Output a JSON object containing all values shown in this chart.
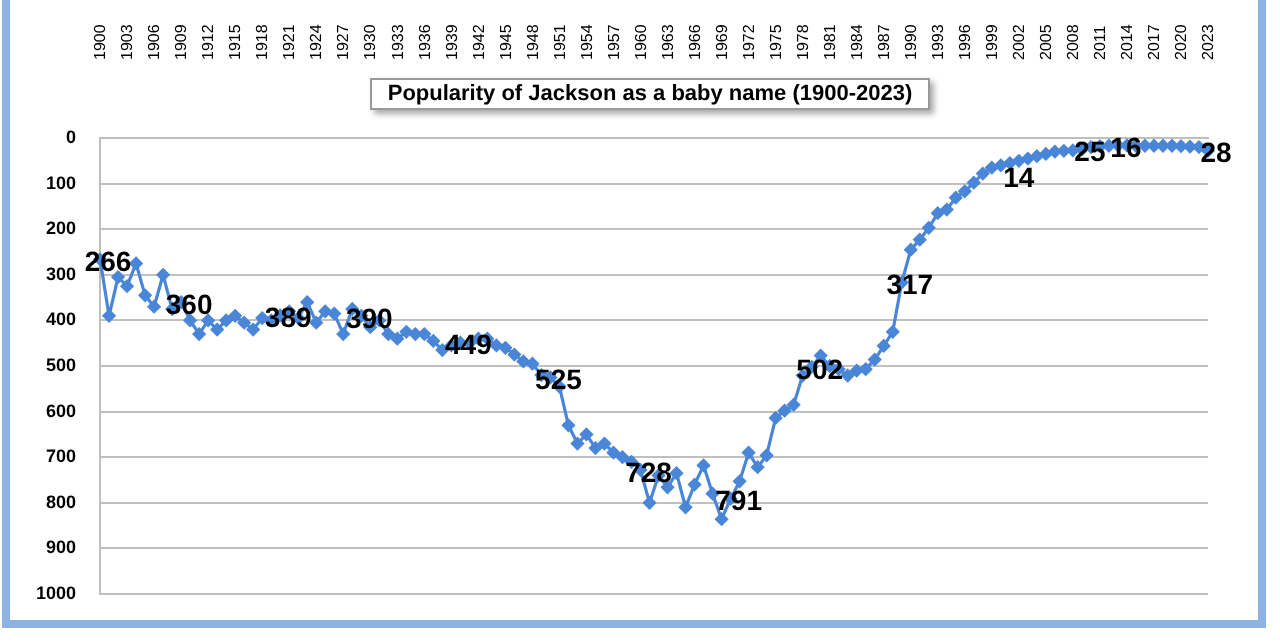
{
  "chart_data": {
    "type": "line",
    "title": "Popularity of Jackson as a baby name (1900-2023)",
    "categories": [
      "1900",
      null,
      null,
      "1903",
      null,
      null,
      "1906",
      null,
      null,
      "1909",
      null,
      null,
      "1912",
      null,
      null,
      "1915",
      null,
      null,
      "1918",
      null,
      null,
      "1921",
      null,
      null,
      "1924",
      null,
      null,
      "1927",
      null,
      null,
      "1930",
      null,
      null,
      "1933",
      null,
      null,
      "1936",
      null,
      null,
      "1939",
      null,
      null,
      "1942",
      null,
      null,
      "1945",
      null,
      null,
      "1948",
      null,
      null,
      "1951",
      null,
      null,
      "1954",
      null,
      null,
      "1957",
      null,
      null,
      "1960",
      null,
      null,
      "1963",
      null,
      null,
      "1966",
      null,
      null,
      "1969",
      null,
      null,
      "1972",
      null,
      null,
      "1975",
      null,
      null,
      "1978",
      null,
      null,
      "1981",
      null,
      null,
      "1984",
      null,
      null,
      "1987",
      null,
      null,
      "1990",
      null,
      null,
      "1993",
      null,
      null,
      "1996",
      null,
      null,
      "1999",
      null,
      null,
      "2002",
      null,
      null,
      "2005",
      null,
      null,
      "2008",
      null,
      null,
      "2011",
      null,
      null,
      "2014",
      null,
      null,
      "2017",
      null,
      null,
      "2020",
      null,
      null,
      "2023"
    ],
    "series": [
      {
        "color": "#4a86d8",
        "values": [
          266,
          390,
          305,
          325,
          275,
          345,
          370,
          300,
          375,
          360,
          400,
          430,
          400,
          420,
          400,
          390,
          405,
          420,
          395,
          400,
          389,
          380,
          395,
          360,
          405,
          380,
          385,
          430,
          375,
          390,
          415,
          400,
          430,
          440,
          425,
          430,
          430,
          445,
          465,
          455,
          449,
          450,
          440,
          440,
          455,
          460,
          475,
          490,
          495,
          520,
          525,
          545,
          630,
          670,
          650,
          680,
          670,
          690,
          700,
          710,
          728,
          800,
          740,
          766,
          735,
          810,
          760,
          718,
          780,
          836,
          791,
          753,
          690,
          722,
          696,
          614,
          598,
          585,
          521,
          502,
          477,
          500,
          507,
          521,
          510,
          507,
          486,
          456,
          425,
          317,
          245,
          223,
          197,
          165,
          157,
          131,
          117,
          98,
          78,
          65,
          60,
          55,
          50,
          45,
          40,
          35,
          30,
          28,
          27,
          25,
          20,
          18,
          17,
          16,
          16,
          17,
          17,
          17,
          17,
          17,
          18,
          19,
          20,
          28
        ],
        "value_labels": [
          "266",
          null,
          null,
          null,
          null,
          null,
          null,
          null,
          null,
          "360",
          null,
          null,
          null,
          null,
          null,
          null,
          null,
          null,
          null,
          null,
          "389",
          null,
          null,
          null,
          null,
          null,
          null,
          null,
          null,
          "390",
          null,
          null,
          null,
          null,
          null,
          null,
          null,
          null,
          null,
          null,
          "449",
          null,
          null,
          null,
          null,
          null,
          null,
          null,
          null,
          null,
          "525",
          null,
          null,
          null,
          null,
          null,
          null,
          null,
          null,
          null,
          "728",
          null,
          null,
          null,
          null,
          null,
          null,
          null,
          null,
          null,
          "791",
          null,
          null,
          null,
          null,
          null,
          null,
          null,
          null,
          "502",
          null,
          null,
          null,
          null,
          null,
          null,
          null,
          null,
          null,
          "317",
          null,
          null,
          null,
          null,
          null,
          null,
          null,
          null,
          null,
          null,
          null,
          null,
          null,
          null,
          null,
          null,
          null,
          null,
          null,
          "25",
          null,
          null,
          null,
          "16",
          null,
          null,
          null,
          null,
          null,
          null,
          null,
          null,
          null,
          "28"
        ]
      }
    ],
    "annotations": [
      {
        "text": "14",
        "x": "2002",
        "y": 65
      }
    ],
    "ylim": [
      1000,
      0
    ],
    "yticks": [
      0,
      100,
      200,
      300,
      400,
      500,
      600,
      700,
      800,
      900,
      1000
    ],
    "grid": "y",
    "marker": "diamond",
    "line_style": "solid",
    "legend": false
  }
}
